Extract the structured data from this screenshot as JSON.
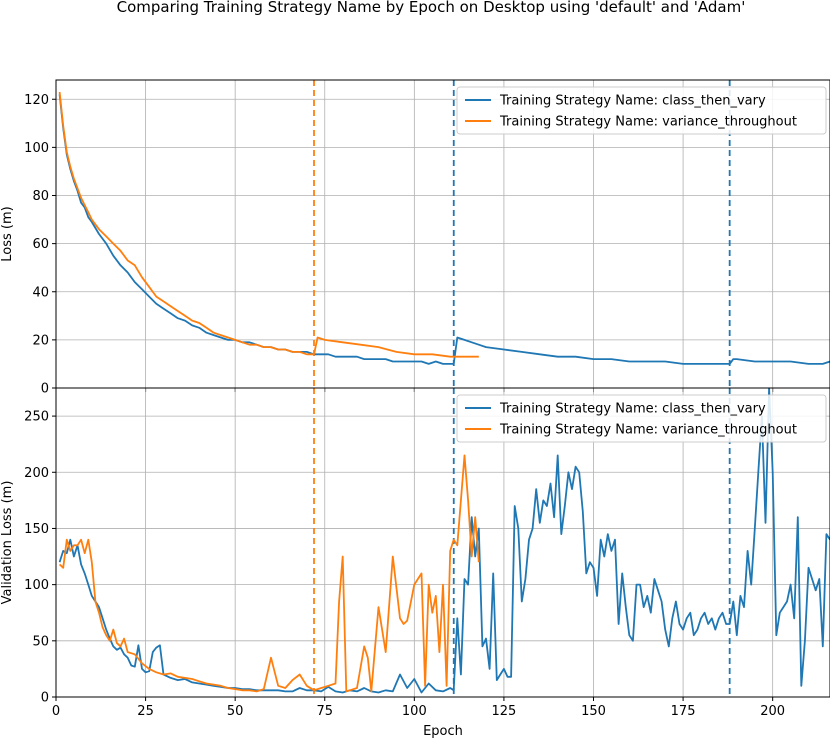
{
  "chart_data": {
    "type": "line",
    "title": "Comparing Training Strategy Name by Epoch on Desktop using 'default' and 'Adam'",
    "xlabel": "Epoch",
    "xlim": [
      0,
      216
    ],
    "xticks": [
      0,
      25,
      50,
      75,
      100,
      125,
      150,
      175,
      200
    ],
    "colors": {
      "class_then_vary": "#1f77b4",
      "variance_throughout": "#ff7f0e"
    },
    "grid": true,
    "legend_placement": "upper-right",
    "vlines": [
      {
        "x": 72,
        "series": "variance_throughout"
      },
      {
        "x": 111,
        "series": "class_then_vary"
      },
      {
        "x": 188,
        "series": "class_then_vary"
      }
    ],
    "subplots": [
      {
        "ylabel": "Loss (m)",
        "ylim": [
          0,
          128
        ],
        "yticks": [
          0,
          20,
          40,
          60,
          80,
          100,
          120
        ],
        "series": [
          {
            "key": "class_then_vary",
            "name": "Training Strategy Name: class_then_vary",
            "x": [
              1,
              2,
              3,
              4,
              5,
              6,
              7,
              8,
              9,
              10,
              12,
              14,
              16,
              18,
              20,
              22,
              24,
              26,
              28,
              30,
              32,
              34,
              36,
              38,
              40,
              42,
              44,
              46,
              48,
              50,
              52,
              54,
              56,
              58,
              60,
              62,
              64,
              66,
              68,
              70,
              72,
              74,
              76,
              78,
              80,
              82,
              84,
              86,
              88,
              90,
              92,
              94,
              96,
              98,
              100,
              102,
              104,
              106,
              108,
              110,
              111,
              112,
              114,
              116,
              118,
              120,
              125,
              130,
              135,
              140,
              145,
              150,
              155,
              160,
              165,
              170,
              175,
              180,
              185,
              188,
              189,
              190,
              195,
              200,
              205,
              210,
              214,
              216
            ],
            "y": [
              122,
              108,
              97,
              91,
              86,
              82,
              77,
              75,
              71,
              69,
              64,
              60,
              55,
              51,
              48,
              44,
              41,
              38,
              35,
              33,
              31,
              29,
              28,
              26,
              25,
              23,
              22,
              21,
              20,
              20,
              19,
              19,
              18,
              17,
              17,
              16,
              16,
              15,
              15,
              15,
              14,
              14,
              14,
              13,
              13,
              13,
              13,
              12,
              12,
              12,
              12,
              11,
              11,
              11,
              11,
              11,
              10,
              11,
              10,
              10,
              10,
              21,
              20,
              19,
              18,
              17,
              16,
              15,
              14,
              13,
              13,
              12,
              12,
              11,
              11,
              11,
              10,
              10,
              10,
              10,
              12,
              12,
              11,
              11,
              11,
              10,
              10,
              11
            ]
          },
          {
            "key": "variance_throughout",
            "name": "Training Strategy Name: variance_throughout",
            "x": [
              1,
              2,
              3,
              4,
              5,
              6,
              7,
              8,
              9,
              10,
              12,
              14,
              16,
              18,
              20,
              22,
              24,
              26,
              28,
              30,
              32,
              34,
              36,
              38,
              40,
              42,
              44,
              46,
              48,
              50,
              52,
              54,
              56,
              58,
              60,
              62,
              64,
              66,
              68,
              70,
              72,
              73,
              75,
              80,
              85,
              90,
              95,
              100,
              105,
              110,
              115,
              118
            ],
            "y": [
              123,
              109,
              98,
              92,
              87,
              83,
              79,
              76,
              73,
              70,
              66,
              63,
              60,
              57,
              53,
              51,
              46,
              42,
              38,
              36,
              34,
              32,
              30,
              28,
              27,
              25,
              23,
              22,
              21,
              20,
              19,
              18,
              18,
              17,
              17,
              16,
              16,
              15,
              15,
              14,
              14,
              21,
              20,
              19,
              18,
              17,
              15,
              14,
              14,
              13,
              13,
              13
            ]
          }
        ]
      },
      {
        "ylabel": "Validation Loss (m)",
        "ylim": [
          0,
          275
        ],
        "yticks": [
          0,
          50,
          100,
          150,
          200,
          250
        ],
        "series": [
          {
            "key": "class_then_vary",
            "name": "Training Strategy Name: class_then_vary",
            "x": [
              1,
              2,
              3,
              4,
              5,
              6,
              7,
              8,
              9,
              10,
              11,
              12,
              13,
              14,
              15,
              16,
              17,
              18,
              19,
              20,
              21,
              22,
              23,
              24,
              25,
              26,
              27,
              28,
              29,
              30,
              32,
              34,
              36,
              38,
              40,
              42,
              44,
              46,
              48,
              50,
              52,
              54,
              56,
              58,
              60,
              62,
              64,
              66,
              68,
              70,
              72,
              74,
              76,
              78,
              80,
              82,
              84,
              86,
              88,
              90,
              92,
              94,
              96,
              98,
              100,
              102,
              104,
              106,
              108,
              110,
              111,
              112,
              113,
              114,
              115,
              116,
              117,
              118,
              119,
              120,
              121,
              122,
              123,
              124,
              125,
              126,
              127,
              128,
              129,
              130,
              131,
              132,
              133,
              134,
              135,
              136,
              137,
              138,
              139,
              140,
              141,
              142,
              143,
              144,
              145,
              146,
              147,
              148,
              149,
              150,
              151,
              152,
              153,
              154,
              155,
              156,
              157,
              158,
              159,
              160,
              161,
              162,
              163,
              164,
              165,
              166,
              167,
              168,
              169,
              170,
              171,
              172,
              173,
              174,
              175,
              176,
              177,
              178,
              179,
              180,
              181,
              182,
              183,
              184,
              185,
              186,
              187,
              188,
              189,
              190,
              191,
              192,
              193,
              194,
              195,
              196,
              197,
              198,
              199,
              200,
              201,
              202,
              203,
              204,
              205,
              206,
              207,
              208,
              209,
              210,
              211,
              212,
              213,
              214,
              215,
              216
            ],
            "y": [
              120,
              130,
              128,
              140,
              125,
              135,
              118,
              110,
              100,
              90,
              85,
              80,
              70,
              60,
              52,
              45,
              42,
              44,
              38,
              35,
              28,
              27,
              46,
              25,
              22,
              23,
              40,
              44,
              46,
              20,
              17,
              15,
              16,
              13,
              12,
              11,
              10,
              9,
              8,
              8,
              7,
              7,
              6,
              6,
              6,
              6,
              5,
              5,
              8,
              6,
              6,
              5,
              9,
              5,
              4,
              6,
              5,
              8,
              5,
              4,
              6,
              5,
              20,
              8,
              16,
              4,
              12,
              6,
              5,
              8,
              6,
              70,
              20,
              105,
              100,
              160,
              125,
              150,
              45,
              52,
              25,
              110,
              15,
              20,
              25,
              18,
              18,
              170,
              150,
              85,
              105,
              140,
              150,
              185,
              155,
              175,
              170,
              190,
              160,
              215,
              145,
              170,
              200,
              185,
              205,
              200,
              165,
              110,
              120,
              115,
              90,
              140,
              125,
              145,
              130,
              140,
              65,
              110,
              80,
              55,
              50,
              100,
              100,
              80,
              90,
              75,
              105,
              95,
              85,
              60,
              45,
              70,
              85,
              65,
              60,
              70,
              75,
              55,
              60,
              70,
              75,
              65,
              70,
              60,
              70,
              75,
              65,
              65,
              85,
              55,
              90,
              80,
              130,
              100,
              150,
              200,
              250,
              155,
              275,
              200,
              55,
              75,
              80,
              85,
              100,
              70,
              160,
              10,
              50,
              115,
              105,
              95,
              105,
              45,
              145,
              140
            ]
          },
          {
            "key": "variance_throughout",
            "name": "Training Strategy Name: variance_throughout",
            "x": [
              1,
              2,
              3,
              4,
              5,
              6,
              7,
              8,
              9,
              10,
              11,
              12,
              13,
              14,
              15,
              16,
              17,
              18,
              19,
              20,
              22,
              24,
              26,
              28,
              30,
              32,
              34,
              36,
              38,
              40,
              42,
              44,
              46,
              48,
              50,
              52,
              54,
              56,
              58,
              60,
              62,
              64,
              66,
              68,
              70,
              72,
              74,
              76,
              78,
              79,
              80,
              81,
              82,
              84,
              86,
              87,
              88,
              90,
              92,
              94,
              96,
              97,
              98,
              100,
              101,
              102,
              103,
              104,
              105,
              106,
              107,
              108,
              109,
              110,
              111,
              112,
              113,
              114,
              115,
              116,
              117,
              118
            ],
            "y": [
              118,
              115,
              140,
              130,
              135,
              135,
              140,
              128,
              140,
              120,
              85,
              75,
              62,
              55,
              50,
              60,
              48,
              45,
              52,
              40,
              38,
              30,
              25,
              22,
              20,
              21,
              18,
              17,
              16,
              14,
              12,
              11,
              10,
              8,
              7,
              6,
              6,
              5,
              7,
              35,
              10,
              8,
              15,
              20,
              10,
              6,
              8,
              10,
              12,
              85,
              125,
              5,
              6,
              8,
              45,
              35,
              5,
              80,
              40,
              125,
              70,
              65,
              68,
              100,
              105,
              110,
              10,
              100,
              75,
              90,
              40,
              100,
              10,
              130,
              140,
              135,
              175,
              215,
              175,
              125,
              160,
              120
            ]
          }
        ]
      }
    ]
  }
}
